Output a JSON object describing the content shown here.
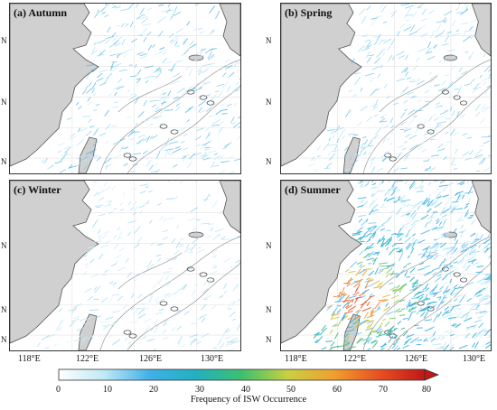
{
  "panels": [
    {
      "id": "a",
      "label": "(a) Autumn",
      "intensity": 0.35,
      "hot": 0
    },
    {
      "id": "b",
      "label": "(b) Spring",
      "intensity": 0.3,
      "hot": 0
    },
    {
      "id": "c",
      "label": "(c) Winter",
      "intensity": 0.2,
      "hot": 0
    },
    {
      "id": "d",
      "label": "(d) Summer",
      "intensity": 1.0,
      "hot": 1
    }
  ],
  "latitude_labels": [
    "N",
    "N",
    "N",
    "N",
    "N",
    "N"
  ],
  "longitude_labels": [
    "118°E",
    "122°E",
    "126°E",
    "130°E"
  ],
  "colorbar": {
    "title": "Frequency of ISW Occurrence",
    "ticks": [
      "0",
      "10",
      "20",
      "30",
      "40",
      "50",
      "60",
      "70",
      "80"
    ],
    "colors": [
      "#ffffff",
      "#bfe8f5",
      "#3fb0e8",
      "#22b0c0",
      "#3cc070",
      "#c8d040",
      "#f0a030",
      "#e85020",
      "#c01818"
    ]
  },
  "isobath_labels": [
    "1000",
    "2000"
  ]
}
